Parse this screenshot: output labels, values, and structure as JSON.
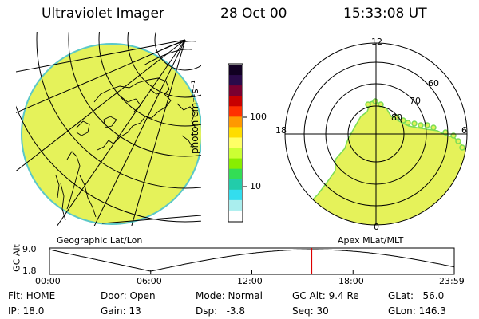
{
  "header": {
    "instrument": "Ultraviolet Imager",
    "date": "28 Oct 00",
    "time": "15:33:08 UT"
  },
  "colorbar": {
    "unit_label": "photon cm⁻²s⁻¹",
    "ticks": [
      "100",
      "10"
    ],
    "colors_top_to_bottom": [
      "#110022",
      "#2a0a4a",
      "#7a0030",
      "#c80000",
      "#ff3000",
      "#ff9900",
      "#ffdd00",
      "#ffff66",
      "#ccff33",
      "#88ee00",
      "#33dd55",
      "#22ccaa",
      "#33ddee",
      "#aaeeee",
      "#ffffff"
    ],
    "image_color": "#e5f25a"
  },
  "left_panel": {
    "caption": "Geographic Lat/Lon"
  },
  "right_panel": {
    "caption": "Apex MLat/MLT",
    "mlt_labels": {
      "top": "12",
      "left": "18",
      "right": "6",
      "bottom": "0"
    },
    "lat_labels": [
      "60",
      "70",
      "80"
    ]
  },
  "timeline": {
    "axis_label": "GC Alt",
    "y_ticks": [
      "9.0",
      "1.8"
    ],
    "x_ticks": [
      "00:00",
      "06:00",
      "12:00",
      "18:00",
      "23:59"
    ],
    "marker_color": "#dd0000",
    "marker_time_hours": 15.55
  },
  "status": {
    "flt": "Flt: HOME",
    "ip": "IP: 18.0",
    "door": "Door: Open",
    "gain": "Gain: 13",
    "mode": "Mode: Normal",
    "dsp": "Dsp:   -3.8",
    "gc_alt": "GC Alt: 9.4 Re",
    "seq": "Seq: 30",
    "glat": "GLat:   56.0",
    "glon": "GLon: 146.3"
  }
}
